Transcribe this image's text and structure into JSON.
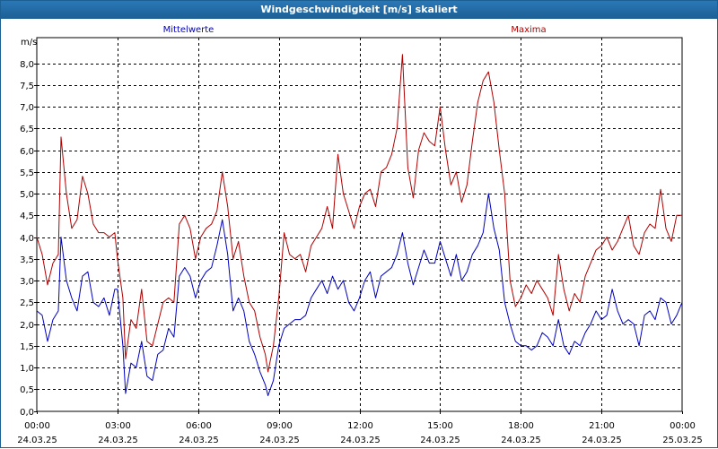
{
  "window": {
    "title": "Windgeschwindigkeit [m/s] skaliert"
  },
  "chart_data": {
    "type": "line",
    "title": "Windgeschwindigkeit [m/s] skaliert",
    "ylabel": "m/s",
    "ylim": [
      0.0,
      8.5
    ],
    "xlim": [
      0,
      24
    ],
    "y_ticks": [
      "0,0",
      "0,5",
      "1,0",
      "1,5",
      "2,0",
      "2,5",
      "3,0",
      "3,5",
      "4,0",
      "4,5",
      "5,0",
      "5,5",
      "6,0",
      "6,5",
      "7,0",
      "7,5",
      "8,0"
    ],
    "x_ticks": [
      {
        "time": "00:00",
        "date": "24.03.25"
      },
      {
        "time": "03:00",
        "date": "24.03.25"
      },
      {
        "time": "06:00",
        "date": "24.03.25"
      },
      {
        "time": "09:00",
        "date": "24.03.25"
      },
      {
        "time": "12:00",
        "date": "24.03.25"
      },
      {
        "time": "15:00",
        "date": "24.03.25"
      },
      {
        "time": "18:00",
        "date": "24.03.25"
      },
      {
        "time": "21:00",
        "date": "24.03.25"
      },
      {
        "time": "00:00",
        "date": "25.03.25"
      }
    ],
    "grid": true,
    "series": [
      {
        "name": "Mittelwerte",
        "color": "#0000c0",
        "points": [
          [
            0,
            2.3
          ],
          [
            0.2,
            2.2
          ],
          [
            0.4,
            1.6
          ],
          [
            0.6,
            2.1
          ],
          [
            0.8,
            2.3
          ],
          [
            0.9,
            4.0
          ],
          [
            1.1,
            3.0
          ],
          [
            1.3,
            2.6
          ],
          [
            1.5,
            2.3
          ],
          [
            1.7,
            3.1
          ],
          [
            1.9,
            3.2
          ],
          [
            2.1,
            2.5
          ],
          [
            2.3,
            2.4
          ],
          [
            2.5,
            2.6
          ],
          [
            2.7,
            2.2
          ],
          [
            2.9,
            2.8
          ],
          [
            3.0,
            2.8
          ],
          [
            3.2,
            1.5
          ],
          [
            3.3,
            0.4
          ],
          [
            3.5,
            1.1
          ],
          [
            3.7,
            1.0
          ],
          [
            3.9,
            1.6
          ],
          [
            4.1,
            0.8
          ],
          [
            4.3,
            0.7
          ],
          [
            4.5,
            1.3
          ],
          [
            4.7,
            1.4
          ],
          [
            4.9,
            1.9
          ],
          [
            5.1,
            1.7
          ],
          [
            5.3,
            3.1
          ],
          [
            5.5,
            3.3
          ],
          [
            5.7,
            3.1
          ],
          [
            5.9,
            2.6
          ],
          [
            6.1,
            3.0
          ],
          [
            6.3,
            3.2
          ],
          [
            6.5,
            3.3
          ],
          [
            6.7,
            3.8
          ],
          [
            6.9,
            4.4
          ],
          [
            7.1,
            3.6
          ],
          [
            7.3,
            2.3
          ],
          [
            7.5,
            2.6
          ],
          [
            7.7,
            2.3
          ],
          [
            7.9,
            1.6
          ],
          [
            8.1,
            1.3
          ],
          [
            8.3,
            0.9
          ],
          [
            8.5,
            0.6
          ],
          [
            8.6,
            0.35
          ],
          [
            8.8,
            0.7
          ],
          [
            9.0,
            1.5
          ],
          [
            9.2,
            1.9
          ],
          [
            9.4,
            2.0
          ],
          [
            9.6,
            2.1
          ],
          [
            9.8,
            2.1
          ],
          [
            10.0,
            2.2
          ],
          [
            10.2,
            2.6
          ],
          [
            10.4,
            2.8
          ],
          [
            10.6,
            3.0
          ],
          [
            10.8,
            2.7
          ],
          [
            11.0,
            3.1
          ],
          [
            11.2,
            2.8
          ],
          [
            11.4,
            3.0
          ],
          [
            11.6,
            2.5
          ],
          [
            11.8,
            2.3
          ],
          [
            12.0,
            2.6
          ],
          [
            12.2,
            3.0
          ],
          [
            12.4,
            3.2
          ],
          [
            12.6,
            2.6
          ],
          [
            12.8,
            3.1
          ],
          [
            13.0,
            3.2
          ],
          [
            13.2,
            3.3
          ],
          [
            13.4,
            3.6
          ],
          [
            13.6,
            4.1
          ],
          [
            13.8,
            3.4
          ],
          [
            14.0,
            2.9
          ],
          [
            14.2,
            3.3
          ],
          [
            14.4,
            3.7
          ],
          [
            14.6,
            3.4
          ],
          [
            14.8,
            3.4
          ],
          [
            15.0,
            3.9
          ],
          [
            15.2,
            3.5
          ],
          [
            15.4,
            3.1
          ],
          [
            15.6,
            3.6
          ],
          [
            15.8,
            3.0
          ],
          [
            16.0,
            3.2
          ],
          [
            16.2,
            3.6
          ],
          [
            16.4,
            3.8
          ],
          [
            16.6,
            4.1
          ],
          [
            16.8,
            5.0
          ],
          [
            17.0,
            4.2
          ],
          [
            17.2,
            3.7
          ],
          [
            17.4,
            2.5
          ],
          [
            17.6,
            2.0
          ],
          [
            17.8,
            1.6
          ],
          [
            18.0,
            1.5
          ],
          [
            18.2,
            1.5
          ],
          [
            18.4,
            1.4
          ],
          [
            18.6,
            1.5
          ],
          [
            18.8,
            1.8
          ],
          [
            19.0,
            1.7
          ],
          [
            19.2,
            1.5
          ],
          [
            19.4,
            2.1
          ],
          [
            19.6,
            1.5
          ],
          [
            19.8,
            1.3
          ],
          [
            20.0,
            1.6
          ],
          [
            20.2,
            1.5
          ],
          [
            20.4,
            1.8
          ],
          [
            20.6,
            2.0
          ],
          [
            20.8,
            2.3
          ],
          [
            21.0,
            2.1
          ],
          [
            21.2,
            2.2
          ],
          [
            21.4,
            2.8
          ],
          [
            21.6,
            2.3
          ],
          [
            21.8,
            2.0
          ],
          [
            22.0,
            2.1
          ],
          [
            22.2,
            2.0
          ],
          [
            22.4,
            1.5
          ],
          [
            22.6,
            2.2
          ],
          [
            22.8,
            2.3
          ],
          [
            23.0,
            2.1
          ],
          [
            23.2,
            2.6
          ],
          [
            23.4,
            2.5
          ],
          [
            23.6,
            2.0
          ],
          [
            23.8,
            2.2
          ],
          [
            24.0,
            2.5
          ]
        ]
      },
      {
        "name": "Maxima",
        "color": "#b00000",
        "points": [
          [
            0,
            4.0
          ],
          [
            0.2,
            3.6
          ],
          [
            0.4,
            2.9
          ],
          [
            0.6,
            3.4
          ],
          [
            0.8,
            3.6
          ],
          [
            0.9,
            6.3
          ],
          [
            1.1,
            5.0
          ],
          [
            1.3,
            4.2
          ],
          [
            1.5,
            4.4
          ],
          [
            1.7,
            5.4
          ],
          [
            1.9,
            5.0
          ],
          [
            2.1,
            4.3
          ],
          [
            2.3,
            4.1
          ],
          [
            2.5,
            4.1
          ],
          [
            2.7,
            4.0
          ],
          [
            2.9,
            4.1
          ],
          [
            3.0,
            3.5
          ],
          [
            3.2,
            2.6
          ],
          [
            3.3,
            1.2
          ],
          [
            3.5,
            2.1
          ],
          [
            3.7,
            1.9
          ],
          [
            3.9,
            2.8
          ],
          [
            4.1,
            1.6
          ],
          [
            4.3,
            1.5
          ],
          [
            4.5,
            2.0
          ],
          [
            4.7,
            2.5
          ],
          [
            4.9,
            2.6
          ],
          [
            5.1,
            2.5
          ],
          [
            5.3,
            4.3
          ],
          [
            5.5,
            4.5
          ],
          [
            5.7,
            4.2
          ],
          [
            5.9,
            3.5
          ],
          [
            6.1,
            4.0
          ],
          [
            6.3,
            4.2
          ],
          [
            6.5,
            4.3
          ],
          [
            6.7,
            4.6
          ],
          [
            6.9,
            5.5
          ],
          [
            7.1,
            4.7
          ],
          [
            7.3,
            3.5
          ],
          [
            7.5,
            3.9
          ],
          [
            7.7,
            3.1
          ],
          [
            7.9,
            2.5
          ],
          [
            8.1,
            2.3
          ],
          [
            8.3,
            1.7
          ],
          [
            8.5,
            1.3
          ],
          [
            8.6,
            0.9
          ],
          [
            8.8,
            1.5
          ],
          [
            9.0,
            2.6
          ],
          [
            9.2,
            4.1
          ],
          [
            9.4,
            3.6
          ],
          [
            9.6,
            3.5
          ],
          [
            9.8,
            3.6
          ],
          [
            10.0,
            3.2
          ],
          [
            10.2,
            3.8
          ],
          [
            10.4,
            4.0
          ],
          [
            10.6,
            4.2
          ],
          [
            10.8,
            4.7
          ],
          [
            11.0,
            4.2
          ],
          [
            11.2,
            5.9
          ],
          [
            11.4,
            5.0
          ],
          [
            11.6,
            4.6
          ],
          [
            11.8,
            4.2
          ],
          [
            12.0,
            4.7
          ],
          [
            12.2,
            5.0
          ],
          [
            12.4,
            5.1
          ],
          [
            12.6,
            4.7
          ],
          [
            12.8,
            5.5
          ],
          [
            13.0,
            5.6
          ],
          [
            13.2,
            5.9
          ],
          [
            13.4,
            6.5
          ],
          [
            13.6,
            8.2
          ],
          [
            13.8,
            5.6
          ],
          [
            14.0,
            4.9
          ],
          [
            14.2,
            6.0
          ],
          [
            14.4,
            6.4
          ],
          [
            14.6,
            6.2
          ],
          [
            14.8,
            6.1
          ],
          [
            15.0,
            7.0
          ],
          [
            15.2,
            6.0
          ],
          [
            15.4,
            5.2
          ],
          [
            15.6,
            5.5
          ],
          [
            15.8,
            4.8
          ],
          [
            16.0,
            5.2
          ],
          [
            16.2,
            6.2
          ],
          [
            16.4,
            7.1
          ],
          [
            16.6,
            7.6
          ],
          [
            16.8,
            7.8
          ],
          [
            17.0,
            7.1
          ],
          [
            17.2,
            6.0
          ],
          [
            17.4,
            5.0
          ],
          [
            17.6,
            3.0
          ],
          [
            17.8,
            2.4
          ],
          [
            18.0,
            2.6
          ],
          [
            18.2,
            2.9
          ],
          [
            18.4,
            2.7
          ],
          [
            18.6,
            3.0
          ],
          [
            18.8,
            2.8
          ],
          [
            19.0,
            2.6
          ],
          [
            19.2,
            2.2
          ],
          [
            19.4,
            3.6
          ],
          [
            19.6,
            2.8
          ],
          [
            19.8,
            2.3
          ],
          [
            20.0,
            2.7
          ],
          [
            20.2,
            2.5
          ],
          [
            20.4,
            3.1
          ],
          [
            20.6,
            3.4
          ],
          [
            20.8,
            3.7
          ],
          [
            21.0,
            3.8
          ],
          [
            21.2,
            4.0
          ],
          [
            21.4,
            3.7
          ],
          [
            21.6,
            3.9
          ],
          [
            21.8,
            4.2
          ],
          [
            22.0,
            4.5
          ],
          [
            22.2,
            3.8
          ],
          [
            22.4,
            3.6
          ],
          [
            22.6,
            4.1
          ],
          [
            22.8,
            4.3
          ],
          [
            23.0,
            4.2
          ],
          [
            23.2,
            5.1
          ],
          [
            23.4,
            4.2
          ],
          [
            23.6,
            3.9
          ],
          [
            23.8,
            4.5
          ],
          [
            24.0,
            4.5
          ]
        ]
      }
    ]
  }
}
